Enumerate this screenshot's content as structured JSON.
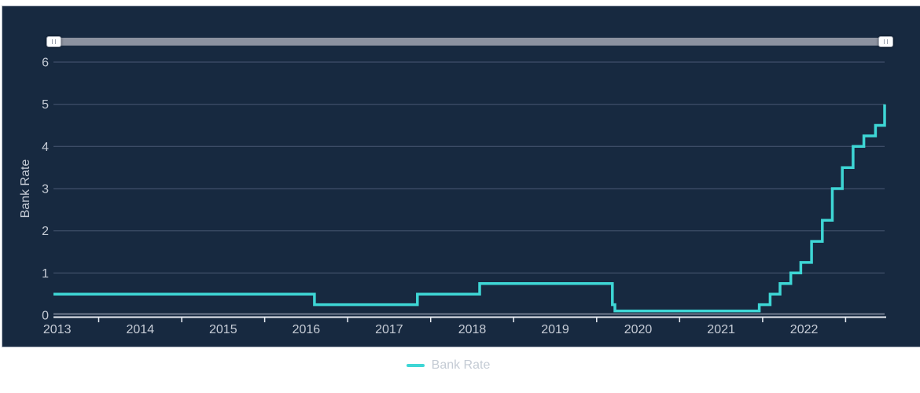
{
  "colors": {
    "card_background": "#172940",
    "card_border": "#b6bdc7",
    "grid": "#485873",
    "zero_gridline": "#8b95a5",
    "axis": "#e9edf4",
    "tick_label": "#c6ccd6",
    "axis_title": "#c6ccd6",
    "series_teal": "#3ed6d5",
    "legend_text": "#c4cbd4",
    "slider_track": "#8c92a0",
    "slider_handle": "#fcfdfe"
  },
  "range_slider": {
    "left_handle_grip": "II",
    "right_handle_grip": "II",
    "position": "top",
    "range": "full"
  },
  "chart_data": {
    "type": "line",
    "mode": "step-after",
    "title": "",
    "xlabel": "",
    "ylabel": "Bank Rate",
    "ylim": [
      0,
      6
    ],
    "xlim": [
      2013.455,
      2023.47
    ],
    "yticks": [
      0,
      1,
      2,
      3,
      4,
      5,
      6
    ],
    "x_boundary_ticks": [
      2014,
      2015,
      2016,
      2017,
      2018,
      2019,
      2020,
      2021,
      2022,
      2023
    ],
    "x_labels": [
      2013,
      2014,
      2015,
      2016,
      2017,
      2018,
      2019,
      2020,
      2021,
      2022
    ],
    "grid": "horizontal",
    "legend_position": "bottom",
    "series": [
      {
        "name": "Bank Rate",
        "color": "#3ed6d5",
        "points": [
          [
            2013.455,
            0.5
          ],
          [
            2016.6,
            0.25
          ],
          [
            2017.84,
            0.5
          ],
          [
            2018.59,
            0.75
          ],
          [
            2020.19,
            0.25
          ],
          [
            2020.22,
            0.1
          ],
          [
            2021.96,
            0.25
          ],
          [
            2022.09,
            0.5
          ],
          [
            2022.21,
            0.75
          ],
          [
            2022.34,
            1.0
          ],
          [
            2022.46,
            1.25
          ],
          [
            2022.59,
            1.75
          ],
          [
            2022.72,
            2.25
          ],
          [
            2022.84,
            3.0
          ],
          [
            2022.96,
            3.5
          ],
          [
            2023.09,
            4.0
          ],
          [
            2023.22,
            4.25
          ],
          [
            2023.36,
            4.5
          ],
          [
            2023.47,
            5.0
          ]
        ]
      }
    ]
  },
  "legend": {
    "items": [
      {
        "label": "Bank Rate",
        "color": "#3ed6d5"
      }
    ]
  }
}
